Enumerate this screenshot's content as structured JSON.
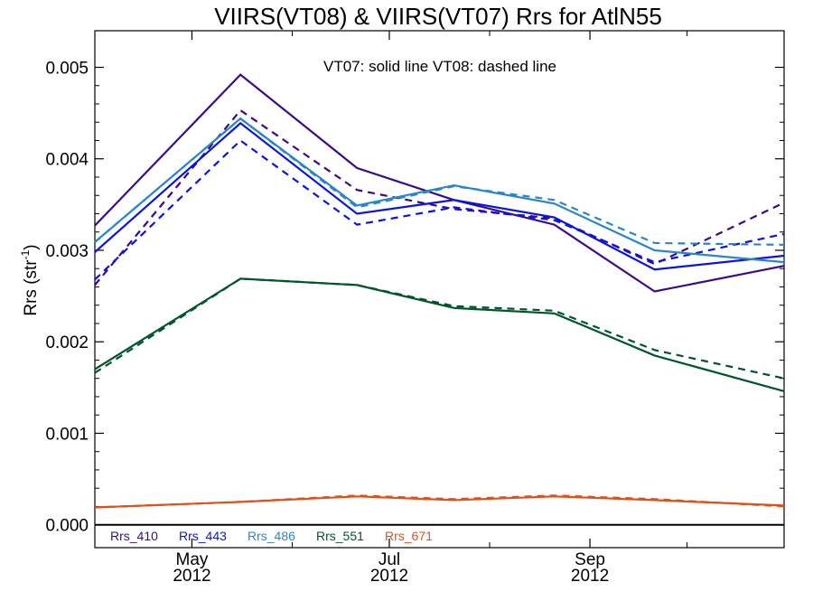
{
  "chart_data": {
    "type": "line",
    "title": "VIIRS(VT08) & VIIRS(VT07)  Rrs for AtlN55",
    "xlabel": "",
    "ylabel": "Rrs (str",
    "ylabel_sup": "-1",
    "ylabel_close": ")",
    "annotation": "VT07: solid line   VT08: dashed line",
    "xlim": [
      "2012-04-01",
      "2012-10-31"
    ],
    "ylim": [
      -0.00025,
      0.0054
    ],
    "y_ticks": [
      {
        "value": 0.0,
        "label": "0.000"
      },
      {
        "value": 0.001,
        "label": "0.001"
      },
      {
        "value": 0.002,
        "label": "0.002"
      },
      {
        "value": 0.003,
        "label": "0.003"
      },
      {
        "value": 0.004,
        "label": "0.004"
      },
      {
        "value": 0.005,
        "label": "0.005"
      }
    ],
    "x_ticks": [
      {
        "date": "2012-05-01",
        "label": "May",
        "sublabel": "2012"
      },
      {
        "date": "2012-07-01",
        "label": "Jul",
        "sublabel": "2012"
      },
      {
        "date": "2012-09-01",
        "label": "Sep",
        "sublabel": "2012"
      }
    ],
    "x_minor_ticks": [
      "2012-06-01",
      "2012-08-01",
      "2012-10-01"
    ],
    "x": [
      "2012-04-01",
      "2012-05-16",
      "2012-06-21",
      "2012-07-21",
      "2012-08-21",
      "2012-09-21",
      "2012-10-31"
    ],
    "series": [
      {
        "name": "Rrs_410",
        "color": "#3b0a8a",
        "style": "solid",
        "values": [
          0.00327,
          0.00492,
          0.0039,
          0.00355,
          0.00328,
          0.00255,
          0.00283
        ]
      },
      {
        "name": "Rrs_410",
        "color": "#3b0a8a",
        "style": "dashed",
        "values": [
          0.00262,
          0.00453,
          0.00366,
          0.00345,
          0.00335,
          0.00285,
          0.00352
        ]
      },
      {
        "name": "Rrs_443",
        "color": "#0a14e0",
        "style": "solid",
        "values": [
          0.00298,
          0.00439,
          0.0034,
          0.00355,
          0.00336,
          0.00279,
          0.00294
        ]
      },
      {
        "name": "Rrs_443",
        "color": "#0a14e0",
        "style": "dashed",
        "values": [
          0.00268,
          0.0042,
          0.00328,
          0.00347,
          0.00333,
          0.00287,
          0.00318
        ]
      },
      {
        "name": "Rrs_486",
        "color": "#2b86c8",
        "style": "solid",
        "values": [
          0.00309,
          0.00444,
          0.00349,
          0.00371,
          0.00351,
          0.003,
          0.00287
        ]
      },
      {
        "name": "Rrs_486",
        "color": "#2b86c8",
        "style": "dashed",
        "values": [
          0.00309,
          0.00444,
          0.00347,
          0.0037,
          0.00355,
          0.00308,
          0.00306
        ]
      },
      {
        "name": "Rrs_551",
        "color": "#00562a",
        "style": "solid",
        "values": [
          0.0017,
          0.00269,
          0.00262,
          0.00237,
          0.00231,
          0.00185,
          0.00146
        ]
      },
      {
        "name": "Rrs_551",
        "color": "#00562a",
        "style": "dashed",
        "values": [
          0.00166,
          0.00269,
          0.00262,
          0.00239,
          0.00234,
          0.00191,
          0.0016
        ]
      },
      {
        "name": "Rrs_671",
        "color": "#e0501a",
        "style": "solid",
        "values": [
          0.00019,
          0.00025,
          0.00031,
          0.00027,
          0.00031,
          0.00027,
          0.00021
        ]
      },
      {
        "name": "Rrs_671",
        "color": "#e0501a",
        "style": "dashed",
        "values": [
          0.00019,
          0.00025,
          0.00032,
          0.00028,
          0.00032,
          0.00028,
          0.0002
        ]
      }
    ],
    "legend": [
      {
        "label": "Rrs_410",
        "color": "#3b0a8a"
      },
      {
        "label": "Rrs_443",
        "color": "#0a14e0"
      },
      {
        "label": "Rrs_486",
        "color": "#2b86c8"
      },
      {
        "label": "Rrs_551",
        "color": "#00562a"
      },
      {
        "label": "Rrs_671",
        "color": "#e0501a"
      }
    ],
    "legend_position": "bottom-left",
    "zero_line": true,
    "grid": false
  }
}
